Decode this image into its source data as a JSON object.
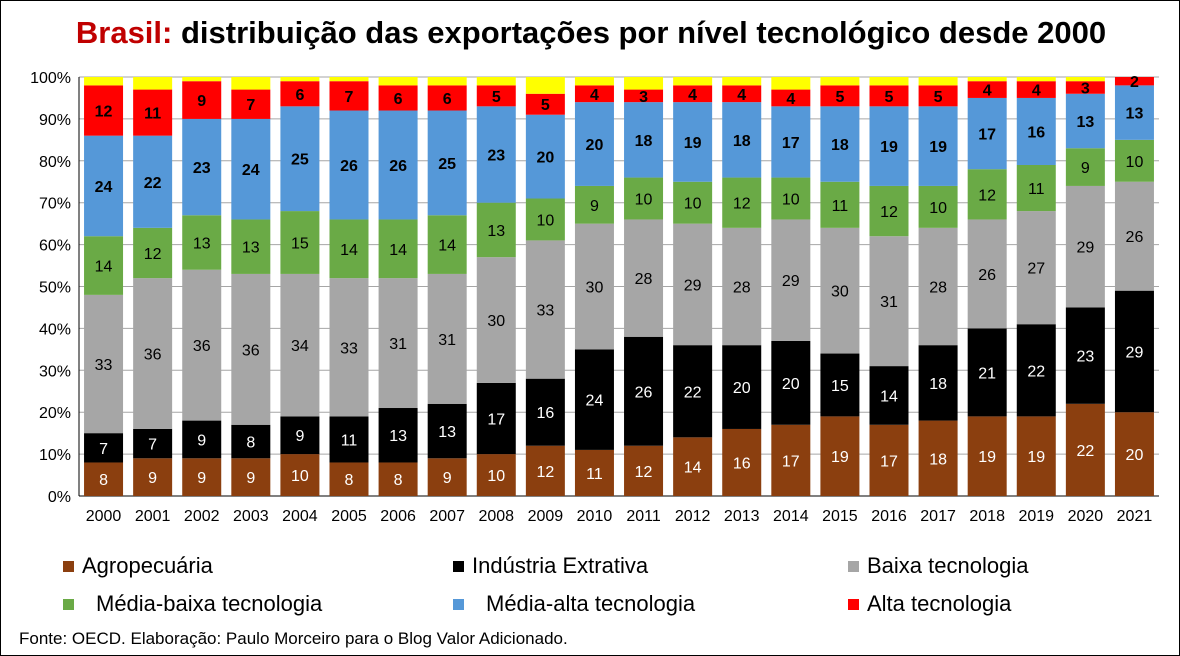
{
  "title": {
    "brand": "Brasil:",
    "rest": " distribuição das exportações por nível tecnológico desde 2000"
  },
  "source": "Fonte: OECD. Elaboração: Paulo Morceiro para o Blog Valor Adicionado.",
  "colors": {
    "agro": "#8b3f0f",
    "extrativa": "#000000",
    "baixa": "#a6a6a6",
    "media_baixa": "#6aaa46",
    "media_alta": "#5598d8",
    "alta": "#ff0000",
    "remainder": "#ffff00"
  },
  "chart_data": {
    "type": "bar",
    "stacked": "percent",
    "ylim": [
      0,
      100
    ],
    "y_ticks": [
      "0%",
      "10%",
      "20%",
      "30%",
      "40%",
      "50%",
      "60%",
      "70%",
      "80%",
      "90%",
      "100%"
    ],
    "grid": true,
    "legend_position": "bottom",
    "categories": [
      "2000",
      "2001",
      "2002",
      "2003",
      "2004",
      "2005",
      "2006",
      "2007",
      "2008",
      "2009",
      "2010",
      "2011",
      "2012",
      "2013",
      "2014",
      "2015",
      "2016",
      "2017",
      "2018",
      "2019",
      "2020",
      "2021"
    ],
    "series": [
      {
        "name": "Agropecuária",
        "color_key": "agro",
        "values": [
          8,
          9,
          9,
          9,
          10,
          8,
          8,
          9,
          10,
          12,
          11,
          12,
          14,
          16,
          17,
          19,
          17,
          18,
          19,
          19,
          22,
          20
        ]
      },
      {
        "name": "Indústria Extrativa",
        "color_key": "extrativa",
        "values": [
          7,
          7,
          9,
          8,
          9,
          11,
          13,
          13,
          17,
          16,
          24,
          26,
          22,
          20,
          20,
          15,
          14,
          18,
          21,
          22,
          23,
          29
        ]
      },
      {
        "name": "Baixa tecnologia",
        "color_key": "baixa",
        "values": [
          33,
          36,
          36,
          36,
          34,
          33,
          31,
          31,
          30,
          33,
          30,
          28,
          29,
          28,
          29,
          30,
          31,
          28,
          26,
          27,
          29,
          26
        ]
      },
      {
        "name": "Média-baixa tecnologia",
        "color_key": "media_baixa",
        "values": [
          14,
          12,
          13,
          13,
          15,
          14,
          14,
          14,
          13,
          10,
          9,
          10,
          10,
          12,
          10,
          11,
          12,
          10,
          12,
          11,
          9,
          10
        ]
      },
      {
        "name": "Média-alta tecnologia",
        "color_key": "media_alta",
        "values": [
          24,
          22,
          23,
          24,
          25,
          26,
          26,
          25,
          23,
          20,
          20,
          18,
          19,
          18,
          17,
          18,
          19,
          19,
          17,
          16,
          13,
          13
        ]
      },
      {
        "name": "Alta tecnologia",
        "color_key": "alta",
        "values": [
          12,
          11,
          9,
          7,
          6,
          7,
          6,
          6,
          5,
          5,
          4,
          3,
          4,
          4,
          4,
          5,
          5,
          5,
          4,
          4,
          3,
          2
        ]
      }
    ]
  }
}
